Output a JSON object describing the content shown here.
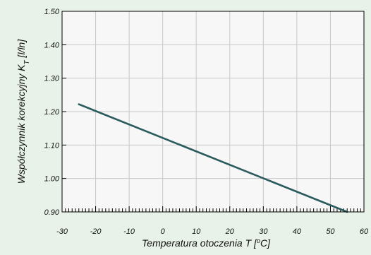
{
  "chart_data": {
    "type": "line",
    "xlabel_main": "Temperatura otoczenia T [",
    "xlabel_unit_sup": "o",
    "xlabel_unit_end": "C]",
    "ylabel_main": "Współczynnik korekcyjny K",
    "ylabel_sub": "T",
    "ylabel_end": " [l/ln]",
    "xlim": [
      -30,
      60
    ],
    "ylim": [
      0.9,
      1.5
    ],
    "x_ticks": [
      -30,
      -20,
      -10,
      0,
      10,
      20,
      30,
      40,
      50,
      60
    ],
    "x_tick_labels": [
      "-30",
      "-20",
      "-10",
      "0",
      "10",
      "20",
      "30",
      "40",
      "50",
      "60"
    ],
    "y_ticks": [
      0.9,
      1.0,
      1.1,
      1.2,
      1.3,
      1.4,
      1.5
    ],
    "y_tick_labels": [
      "0.90",
      "1.00",
      "1.10",
      "1.20",
      "1.30",
      "1.40",
      "1.50"
    ],
    "grid": true,
    "minor_x_tick_step": 1,
    "series": [
      {
        "x": [
          -25,
          55
        ],
        "y": [
          1.222,
          0.9
        ]
      }
    ],
    "colors": {
      "line": "#2b5b5c",
      "grid": "#c8c8c8",
      "plot_bg": "#f7f7f7",
      "page_bg": "#e8f2e8",
      "axis": "#000000"
    }
  }
}
